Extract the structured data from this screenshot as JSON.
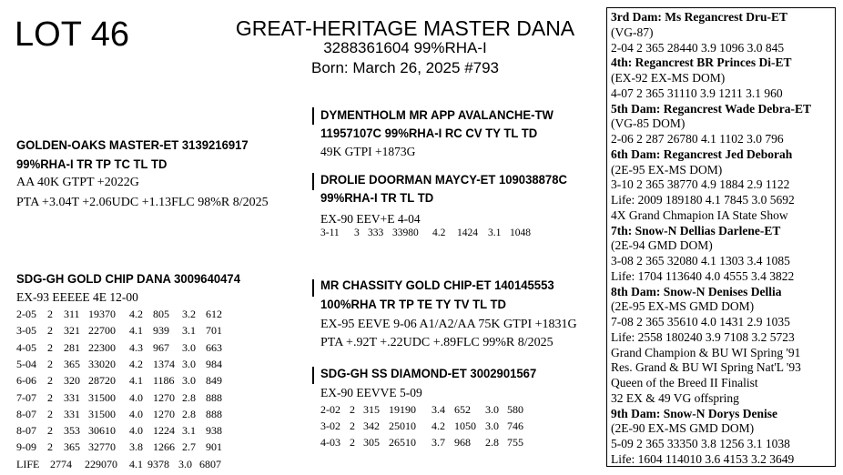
{
  "lot": "LOT 46",
  "animal": {
    "name": "GREAT-HERITAGE MASTER DANA",
    "registration": "3288361604 99%RHA-I",
    "born": "Born: March 26, 2025 #793"
  },
  "sire": {
    "lines": [
      "GOLDEN-OAKS MASTER-ET 3139216917",
      "99%RHA-I TR TP TC TL TD"
    ],
    "details": [
      "AA 40K GTPT +2022G",
      "PTA +3.04T +2.06UDC +1.13FLC 98%R 8/2025"
    ]
  },
  "sire_sire": {
    "lines": [
      "DYMENTHOLM MR APP AVALANCHE-TW",
      "11957107C 99%RHA-I RC CV TY TL TD"
    ],
    "details": [
      "49K GTPI +1873G"
    ]
  },
  "sire_dam": {
    "lines": [
      "DROLIE DOORMAN MAYCY-ET 109038878C",
      "99%RHA-I TR TL TD"
    ],
    "details": [
      "EX-90 EEV+E 4-04"
    ],
    "records": [
      [
        "3-11",
        "3",
        "333",
        "33980",
        "4.2",
        "1424",
        "3.1",
        "1048"
      ]
    ]
  },
  "dam": {
    "lines": [
      "SDG-GH GOLD CHIP DANA 3009640474"
    ],
    "details": [
      "EX-93 EEEEE 4E 12-00"
    ],
    "records": [
      [
        "2-05",
        "2",
        "311",
        "19370",
        "4.2",
        "805",
        "3.2",
        "612"
      ],
      [
        "3-05",
        "2",
        "321",
        "22700",
        "4.1",
        "939",
        "3.1",
        "701"
      ],
      [
        "4-05",
        "2",
        "281",
        "22300",
        "4.3",
        "967",
        "3.0",
        "663"
      ],
      [
        "5-04",
        "2",
        "365",
        "33020",
        "4.2",
        "1374",
        "3.0",
        "984"
      ],
      [
        "6-06",
        "2",
        "320",
        "28720",
        "4.1",
        "1186",
        "3.0",
        "849"
      ],
      [
        "7-07",
        "2",
        "331",
        "31500",
        "4.0",
        "1270",
        "2.8",
        "888"
      ],
      [
        "8-07",
        "2",
        "331",
        "31500",
        "4.0",
        "1270",
        "2.8",
        "888"
      ],
      [
        "8-07",
        "2",
        "353",
        "30610",
        "4.0",
        "1224",
        "3.1",
        "938"
      ],
      [
        "9-09",
        "2",
        "365",
        "32770",
        "3.8",
        "1266",
        "2.7",
        "901"
      ]
    ],
    "life": [
      "LIFE",
      "2774",
      "229070",
      "4.1",
      "9378",
      "3.0",
      "6807"
    ]
  },
  "dam_sire": {
    "lines": [
      "MR CHASSITY GOLD CHIP-ET 140145553",
      "100%RHA TR TP TE TY TV TL TD"
    ],
    "details": [
      "EX-95 EEVE 9-06 A1/A2/AA 75K GTPI +1831G",
      "PTA +.92T +.22UDC +.89FLC 99%R 8/2025"
    ]
  },
  "dam_dam": {
    "lines": [
      "SDG-GH SS DIAMOND-ET 3002901567"
    ],
    "details": [
      "EX-90 EEVVE 5-09"
    ],
    "records": [
      [
        "2-02",
        "2",
        "315",
        "19190",
        "3.4",
        "652",
        "3.0",
        "580"
      ],
      [
        "3-02",
        "2",
        "342",
        "25010",
        "4.2",
        "1050",
        "3.0",
        "746"
      ],
      [
        "4-03",
        "2",
        "305",
        "26510",
        "3.7",
        "968",
        "2.8",
        "755"
      ]
    ]
  },
  "pedigree_box": [
    {
      "title": "3rd Dam: Ms Regancrest Dru-ET",
      "lines": [
        "(VG-87)",
        "2-04 2 365 28440 3.9 1096 3.0 845"
      ]
    },
    {
      "title": "4th: Regancrest BR Princes Di-ET",
      "lines": [
        "(EX-92 EX-MS DOM)",
        "4-07 2 365 31110 3.9 1211 3.1 960"
      ]
    },
    {
      "title": "5th Dam: Regancrest Wade Debra-ET",
      "lines": [
        "(VG-85 DOM)",
        "2-06 2 287 26780 4.1 1102 3.0 796"
      ]
    },
    {
      "title": "6th Dam: Regancrest Jed Deborah",
      "lines": [
        "(2E-95 EX-MS DOM)",
        "3-10 2 365 38770 4.9 1884 2.9 1122",
        "Life: 2009 189180 4.1 7845 3.0 5692",
        "4X Grand Chmapion IA State Show"
      ]
    },
    {
      "title": "7th: Snow-N Dellias Darlene-ET",
      "lines": [
        "(2E-94 GMD DOM)",
        "3-08 2 365 32080 4.1 1303 3.4 1085",
        "Life: 1704 113640 4.0 4555 3.4 3822"
      ]
    },
    {
      "title": "8th Dam: Snow-N Denises Dellia",
      "lines": [
        "(2E-95 EX-MS GMD DOM)",
        "7-08 2 365 35610 4.0 1431 2.9 1035",
        "Life: 2558 180240 3.9 7108 3.2 5723",
        "Grand Champion & BU WI Spring '91",
        "Res. Grand & BU WI Spring Nat'L '93",
        "Queen of the Breed II Finalist",
        "32 EX & 49 VG offspring"
      ]
    },
    {
      "title": "9th Dam: Snow-N Dorys Denise",
      "lines": [
        "(2E-90 EX-MS GMD DOM)",
        "5-09 2 365 33350 3.8 1256 3.1 1038",
        "Life: 1604 114010 3.6 4153 3.2 3649"
      ]
    }
  ]
}
